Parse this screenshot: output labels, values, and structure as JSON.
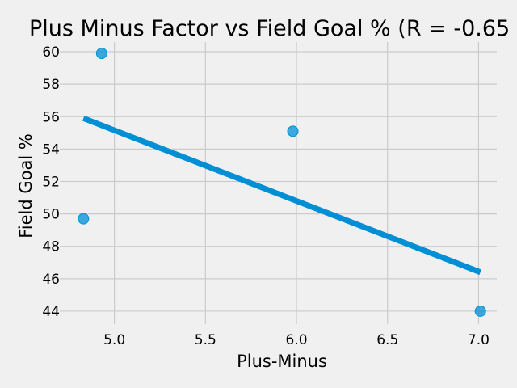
{
  "chart_data": {
    "type": "scatter",
    "title": "Plus Minus Factor vs Field Goal % (R = -0.65",
    "xlabel": "Plus-Minus",
    "ylabel": "Field Goal %",
    "xlim": [
      4.7,
      7.1
    ],
    "ylim": [
      43.2,
      60.6
    ],
    "xticks": [
      5.0,
      5.5,
      6.0,
      6.5,
      7.0
    ],
    "yticks": [
      44,
      46,
      48,
      50,
      52,
      54,
      56,
      58,
      60
    ],
    "grid": true,
    "series": [
      {
        "type": "scatter",
        "color": "#008fd5",
        "points": [
          {
            "x": 4.83,
            "y": 49.7
          },
          {
            "x": 4.93,
            "y": 59.9
          },
          {
            "x": 5.98,
            "y": 55.1
          },
          {
            "x": 7.01,
            "y": 44.0
          }
        ]
      },
      {
        "type": "line",
        "color": "#008fd5",
        "points": [
          {
            "x": 4.83,
            "y": 55.9
          },
          {
            "x": 7.01,
            "y": 46.4
          }
        ]
      }
    ]
  }
}
